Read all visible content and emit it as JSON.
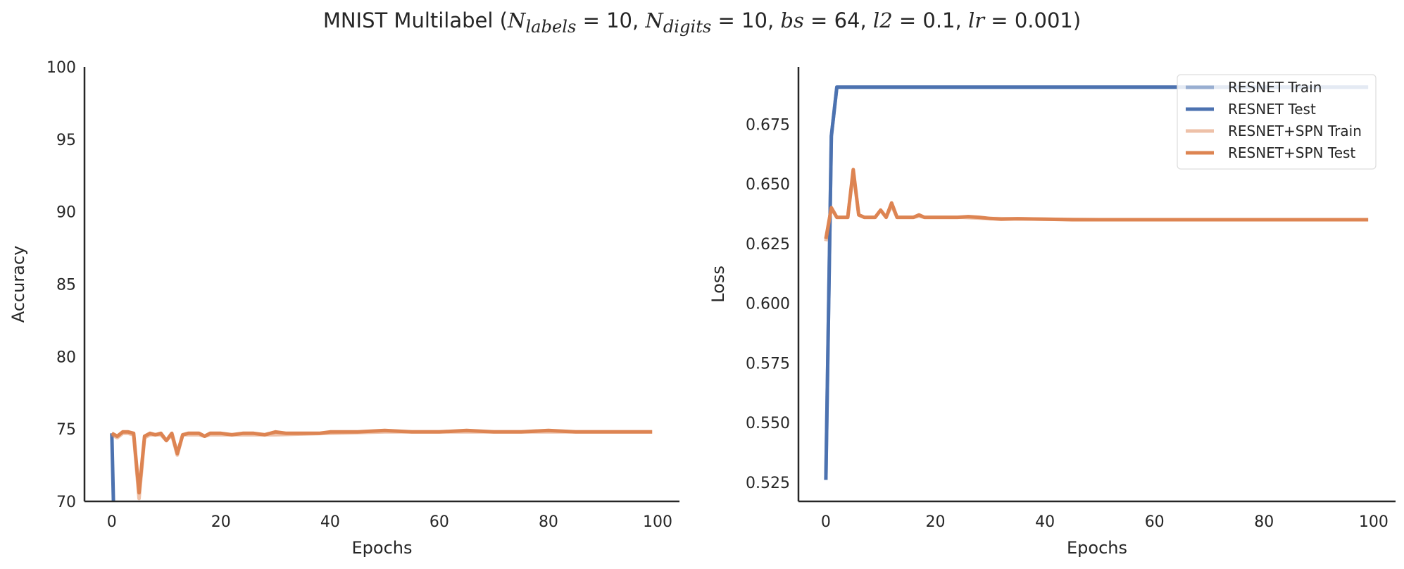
{
  "title": {
    "prefix": "MNIST Multilabel (",
    "N": "N",
    "labels_sub": "labels",
    "eq10a": " = 10, ",
    "digits_sub": "digits",
    "eq10b": " = 10, ",
    "bs": "bs",
    "eq64": " = 64, ",
    "l2": "l2",
    "eq01": " = 0.1, ",
    "lr": "lr",
    "eq0001": " = 0.001",
    "suffix": ")"
  },
  "colors": {
    "resnet": "#4c72b0",
    "spn": "#dd8452"
  },
  "chart_data": [
    {
      "type": "line",
      "xlabel": "Epochs",
      "ylabel": "Accuracy",
      "xlim": [
        -5,
        104
      ],
      "ylim": [
        70,
        100
      ],
      "xticks": [
        0,
        20,
        40,
        60,
        80,
        100
      ],
      "yticks": [
        70,
        75,
        80,
        85,
        90,
        95,
        100
      ],
      "grid": false,
      "series": [
        {
          "name": "RESNET Test",
          "x": [
            0,
            0.3
          ],
          "y": [
            74.7,
            70
          ]
        },
        {
          "name": "RESNET+SPN Train",
          "x": [
            0,
            1,
            2,
            3,
            4,
            5,
            6,
            7,
            8,
            9,
            10,
            11,
            12,
            13,
            14,
            15,
            16,
            17,
            18,
            19,
            20,
            30,
            40,
            50,
            60,
            70,
            80,
            90,
            99
          ],
          "y": [
            74.6,
            74.4,
            74.7,
            74.7,
            74.6,
            70.2,
            74.4,
            74.6,
            74.6,
            74.6,
            74.2,
            74.6,
            73.2,
            74.6,
            74.6,
            74.6,
            74.6,
            74.5,
            74.6,
            74.6,
            74.6,
            74.6,
            74.7,
            74.8,
            74.8,
            74.8,
            74.8,
            74.8,
            74.8
          ]
        },
        {
          "name": "RESNET+SPN Test",
          "x": [
            0,
            1,
            2,
            3,
            4,
            5,
            6,
            7,
            8,
            9,
            10,
            11,
            12,
            13,
            14,
            15,
            16,
            17,
            18,
            19,
            20,
            22,
            24,
            26,
            28,
            30,
            32,
            34,
            36,
            38,
            40,
            45,
            50,
            55,
            60,
            65,
            70,
            75,
            80,
            85,
            90,
            95,
            99
          ],
          "y": [
            74.7,
            74.5,
            74.8,
            74.8,
            74.7,
            70.6,
            74.5,
            74.7,
            74.6,
            74.7,
            74.2,
            74.7,
            73.3,
            74.6,
            74.7,
            74.7,
            74.7,
            74.5,
            74.7,
            74.7,
            74.7,
            74.6,
            74.7,
            74.7,
            74.6,
            74.8,
            74.7,
            74.7,
            74.7,
            74.7,
            74.8,
            74.8,
            74.9,
            74.8,
            74.8,
            74.9,
            74.8,
            74.8,
            74.9,
            74.8,
            74.8,
            74.8,
            74.8
          ]
        }
      ]
    },
    {
      "type": "line",
      "xlabel": "Epochs",
      "ylabel": "Loss",
      "xlim": [
        -5,
        104
      ],
      "ylim": [
        0.517,
        0.699
      ],
      "xticks": [
        0,
        20,
        40,
        60,
        80,
        100
      ],
      "yticks": [
        0.525,
        0.55,
        0.575,
        0.6,
        0.625,
        0.65,
        0.675
      ],
      "ytick_labels": [
        "0.525",
        "0.550",
        "0.575",
        "0.600",
        "0.625",
        "0.650",
        "0.675"
      ],
      "grid": false,
      "legend": "top-right",
      "series": [
        {
          "name": "RESNET Train",
          "x": [
            0,
            1,
            2,
            10,
            99
          ],
          "y": [
            0.526,
            0.67,
            0.6905,
            0.6905,
            0.6905
          ]
        },
        {
          "name": "RESNET Test",
          "x": [
            0,
            1,
            2,
            10,
            99
          ],
          "y": [
            0.526,
            0.67,
            0.6905,
            0.6905,
            0.6905
          ]
        },
        {
          "name": "RESNET+SPN Train",
          "x": [
            0,
            1,
            2,
            3,
            4,
            5,
            6,
            7,
            8,
            9,
            10,
            11,
            12,
            13,
            14,
            15,
            16,
            17,
            18,
            20,
            25,
            30,
            40,
            50,
            60,
            70,
            80,
            90,
            99
          ],
          "y": [
            0.626,
            0.64,
            0.636,
            0.636,
            0.636,
            0.655,
            0.637,
            0.636,
            0.636,
            0.636,
            0.639,
            0.636,
            0.641,
            0.636,
            0.636,
            0.636,
            0.636,
            0.6365,
            0.636,
            0.636,
            0.636,
            0.6355,
            0.6352,
            0.635,
            0.635,
            0.635,
            0.635,
            0.635,
            0.635
          ]
        },
        {
          "name": "RESNET+SPN Test",
          "x": [
            0,
            1,
            2,
            3,
            4,
            5,
            6,
            7,
            8,
            9,
            10,
            11,
            12,
            13,
            14,
            15,
            16,
            17,
            18,
            19,
            20,
            22,
            24,
            26,
            28,
            30,
            32,
            35,
            40,
            45,
            50,
            55,
            60,
            65,
            70,
            75,
            80,
            85,
            90,
            95,
            99
          ],
          "y": [
            0.627,
            0.64,
            0.636,
            0.636,
            0.636,
            0.656,
            0.637,
            0.636,
            0.636,
            0.636,
            0.639,
            0.636,
            0.642,
            0.636,
            0.636,
            0.636,
            0.636,
            0.637,
            0.636,
            0.636,
            0.636,
            0.636,
            0.636,
            0.6363,
            0.636,
            0.6355,
            0.6352,
            0.6354,
            0.6352,
            0.635,
            0.635,
            0.635,
            0.635,
            0.635,
            0.635,
            0.635,
            0.635,
            0.635,
            0.635,
            0.635,
            0.635
          ]
        }
      ]
    }
  ]
}
